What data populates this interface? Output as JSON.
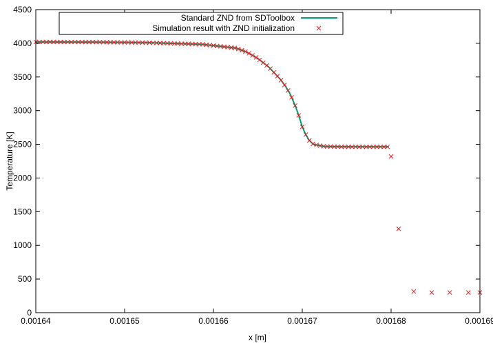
{
  "chart_data": {
    "type": "line",
    "title": "",
    "xlabel": "x [m]",
    "ylabel": "Temperature [K]",
    "xlim": [
      0.00164,
      0.00169
    ],
    "ylim": [
      0,
      4500
    ],
    "xticks": [
      0.00164,
      0.00165,
      0.00166,
      0.00167,
      0.00168,
      0.00169
    ],
    "xtick_labels": [
      "0.00164",
      "0.00165",
      "0.00166",
      "0.00167",
      "0.00168",
      "0.00169"
    ],
    "yticks": [
      0,
      500,
      1000,
      1500,
      2000,
      2500,
      3000,
      3500,
      4000,
      4500
    ],
    "ytick_labels": [
      "0",
      "500",
      "1000",
      "1500",
      "2000",
      "2500",
      "3000",
      "3500",
      "4000",
      "4500"
    ],
    "grid": false,
    "legend_position": "top-left",
    "series": [
      {
        "name": "Standard ZND from SDToolbox",
        "kind": "line",
        "color": "#009e73",
        "x": [
          0.00164,
          0.00164625,
          0.0016525,
          0.00165875,
          0.0016625,
          0.00166375,
          0.001665,
          0.00166625,
          0.0016675,
          0.001668125,
          0.001668625,
          0.00166925,
          0.001669625,
          0.00167,
          0.001670375,
          0.00167075,
          0.00167125,
          0.0016725,
          0.001675,
          0.00167975
        ],
        "y": [
          4020,
          4018,
          4010,
          3985,
          3930,
          3870,
          3775,
          3645,
          3470,
          3360,
          3250,
          3060,
          2920,
          2760,
          2650,
          2565,
          2500,
          2468,
          2463,
          2463
        ]
      },
      {
        "name": "Simulation result with ZND initialization",
        "kind": "points",
        "marker": "x",
        "color": "#e41a1c",
        "x": [
          0.00164,
          0.00164625,
          0.0016525,
          0.00165875,
          0.0016625,
          0.00166375,
          0.001665,
          0.00166625,
          0.0016675,
          0.001668125,
          0.001668625,
          0.00166925,
          0.001669625,
          0.00167,
          0.001670375,
          0.00167075,
          0.00167125,
          0.0016725,
          0.001675,
          0.00167975,
          0.00168,
          0.00168085,
          0.00168255,
          0.001684575,
          0.0016866,
          0.0016887,
          0.00169
        ],
        "y": [
          4020,
          4018,
          4010,
          3985,
          3930,
          3870,
          3775,
          3645,
          3470,
          3360,
          3250,
          3060,
          2920,
          2760,
          2650,
          2565,
          2500,
          2468,
          2463,
          2463,
          2320,
          1245,
          315,
          300,
          300,
          300,
          300
        ]
      }
    ]
  }
}
